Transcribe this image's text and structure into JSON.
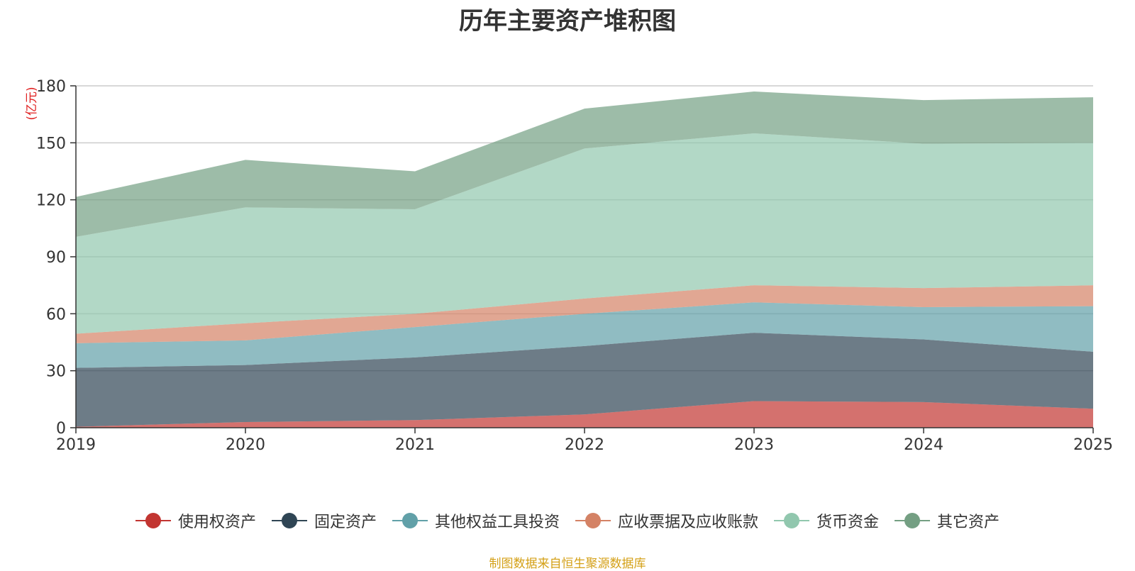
{
  "chart_data": {
    "type": "area",
    "stacked": true,
    "title": "历年主要资产堆积图",
    "ylabel": "(亿元)",
    "xlabel": "",
    "x": [
      "2019",
      "2020",
      "2021",
      "2022",
      "2023",
      "2024",
      "2025"
    ],
    "ylim": [
      0,
      180
    ],
    "yticks": [
      0,
      30,
      60,
      90,
      120,
      150,
      180
    ],
    "grid": true,
    "legend_position": "bottom",
    "series": [
      {
        "name": "使用权资产",
        "color": "#c23531",
        "values": [
          0.5,
          3,
          4,
          7,
          14,
          13.5,
          10
        ]
      },
      {
        "name": "固定资产",
        "color": "#2f4554",
        "values": [
          31,
          30,
          33,
          36,
          36,
          33,
          30
        ]
      },
      {
        "name": "其他权益工具投资",
        "color": "#61a0a8",
        "values": [
          13,
          13,
          16,
          17,
          16,
          17,
          24
        ]
      },
      {
        "name": "应收票据及应收账款",
        "color": "#d48265",
        "values": [
          5,
          9,
          7,
          8,
          9,
          10,
          11
        ]
      },
      {
        "name": "货币资金",
        "color": "#91c7ae",
        "values": [
          51,
          61,
          55,
          79,
          80,
          76,
          75
        ]
      },
      {
        "name": "其它资产",
        "color": "#749f83",
        "values": [
          21,
          25,
          20,
          21,
          22,
          23,
          24
        ]
      }
    ]
  },
  "source_note": "制图数据来自恒生聚源数据库"
}
